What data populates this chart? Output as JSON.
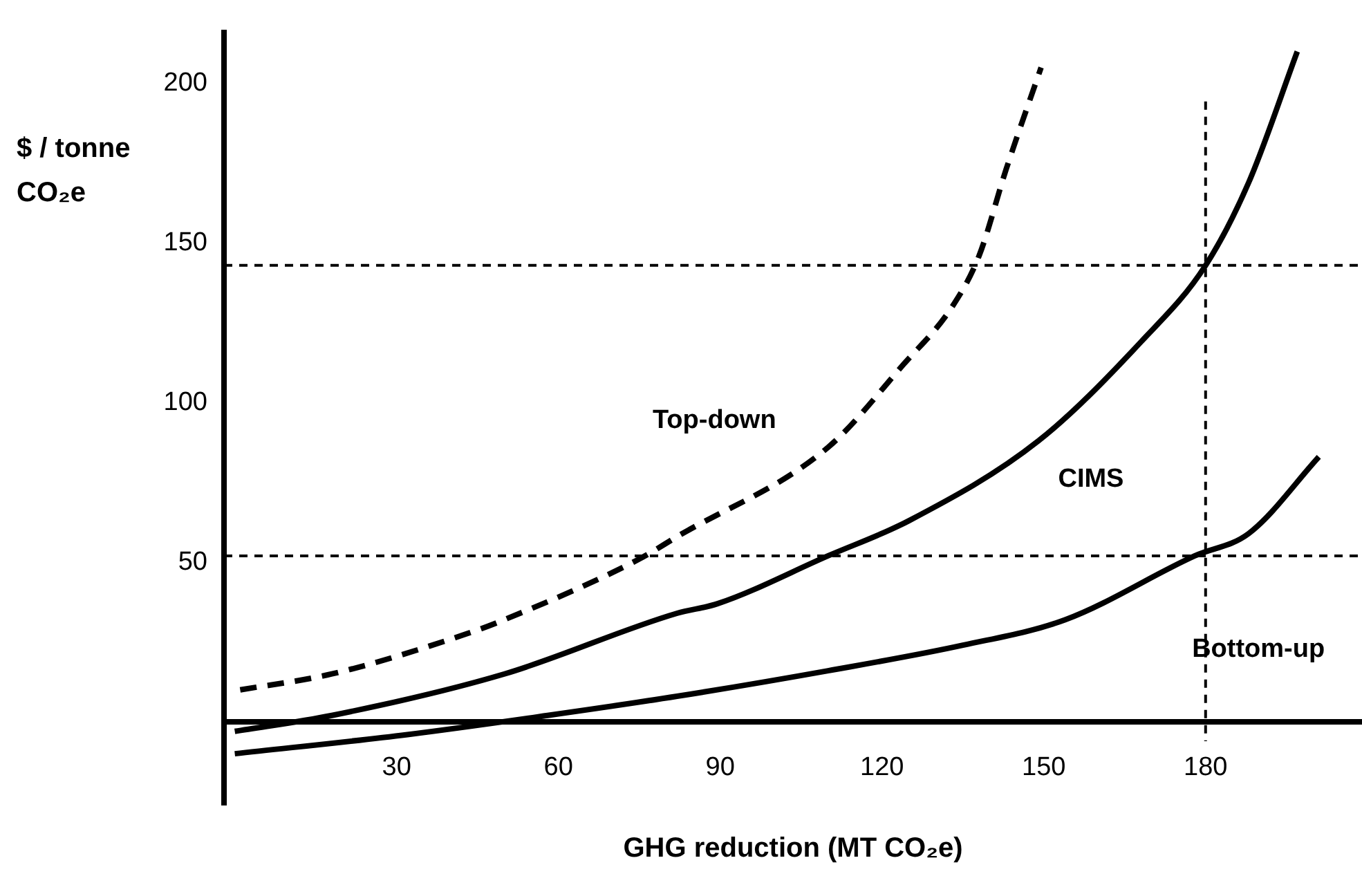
{
  "chart_data": {
    "type": "line",
    "xlabel": "GHG reduction (MT CO₂e)",
    "ylabel": "$ / tonne CO₂e",
    "xlim": [
      -2,
      209
    ],
    "ylim": [
      -26,
      216
    ],
    "xticks": [
      30,
      60,
      90,
      120,
      150,
      180
    ],
    "yticks": [
      50,
      100,
      150,
      200
    ],
    "grid": false,
    "legend": false,
    "marker": "none",
    "series": [
      {
        "name": "Top-down",
        "color": "#000000",
        "line_style": "dashed",
        "x": [
          1,
          18,
          42,
          50,
          75,
          82,
          110,
          124,
          133,
          138,
          143,
          149.5
        ],
        "values": [
          10,
          15,
          27,
          32,
          51,
          58,
          86,
          112,
          130,
          146,
          173,
          205
        ]
      },
      {
        "name": "CIMS",
        "color": "#000000",
        "line_style": "solid",
        "x": [
          0,
          18,
          50,
          82,
          89.5,
          110,
          125,
          149,
          168,
          180,
          188,
          197
        ],
        "values": [
          -3,
          2,
          15,
          34,
          37,
          52,
          63,
          88,
          119,
          143,
          169,
          210
        ]
      },
      {
        "name": "Bottom-up",
        "color": "#000000",
        "line_style": "solid",
        "x": [
          0,
          32,
          58,
          82,
          110,
          135,
          154,
          178,
          188,
          201
        ],
        "values": [
          -10,
          -4,
          2,
          8,
          16,
          24,
          32,
          52,
          59,
          83
        ]
      }
    ],
    "ref_lines": [
      {
        "axis": "y",
        "value": 143,
        "line_style": "dashed"
      },
      {
        "axis": "y",
        "value": 52,
        "line_style": "dashed"
      },
      {
        "axis": "x",
        "value": 180,
        "line_style": "dashed"
      }
    ]
  }
}
